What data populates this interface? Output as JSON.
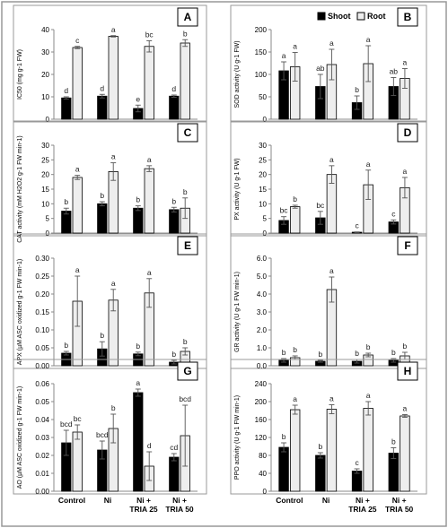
{
  "legend": {
    "shoot": "Shoot",
    "root": "Root",
    "shoot_color": "#000000",
    "root_color": "#eeeeee"
  },
  "categories": [
    "Control",
    "Ni",
    "Ni +|TRIA 25",
    "Ni +|TRIA 50"
  ],
  "chart_data": [
    {
      "type": "bar",
      "panel": "A",
      "ylabel": "IC50 (mg g-1 FW)",
      "ylim": [
        0,
        40
      ],
      "yticks": [
        0,
        10,
        20,
        30,
        40
      ],
      "series": [
        {
          "name": "Shoot",
          "values": [
            9.5,
            10.3,
            4.8,
            10.3
          ],
          "errors": [
            0.5,
            0.8,
            1.5,
            0.5
          ],
          "letters": [
            "d",
            "d",
            "e",
            "d"
          ]
        },
        {
          "name": "Root",
          "values": [
            32,
            37,
            32.5,
            34
          ],
          "errors": [
            0.5,
            0.3,
            2.5,
            1.5
          ],
          "letters": [
            "c",
            "a",
            "bc",
            "b"
          ]
        }
      ]
    },
    {
      "type": "bar",
      "panel": "B",
      "ylabel": "SOD activity (U g-1 FW)",
      "ylim": [
        0,
        200
      ],
      "yticks": [
        0,
        50,
        100,
        150,
        200
      ],
      "series": [
        {
          "name": "Shoot",
          "values": [
            108,
            73,
            37,
            73
          ],
          "errors": [
            20,
            27,
            15,
            20
          ],
          "letters": [
            "a",
            "ab",
            "b",
            "ab"
          ]
        },
        {
          "name": "Root",
          "values": [
            117,
            122,
            124,
            91
          ],
          "errors": [
            32,
            34,
            40,
            22
          ],
          "letters": [
            "a",
            "a",
            "a",
            "a"
          ]
        }
      ]
    },
    {
      "type": "bar",
      "panel": "C",
      "ylabel": "CAT activity (mM H2O2 g-1 FW min-1)",
      "ylim": [
        0,
        30
      ],
      "yticks": [
        0,
        5,
        10,
        15,
        20,
        25,
        30
      ],
      "series": [
        {
          "name": "Shoot",
          "values": [
            7.5,
            10,
            8.5,
            8
          ],
          "errors": [
            1,
            0.7,
            0.8,
            0.8
          ],
          "letters": [
            "b",
            "b",
            "b",
            "b"
          ]
        },
        {
          "name": "Root",
          "values": [
            19,
            21,
            22,
            8.5
          ],
          "errors": [
            0.7,
            3,
            1,
            3.5
          ],
          "letters": [
            "a",
            "a",
            "a",
            "b"
          ]
        }
      ]
    },
    {
      "type": "bar",
      "panel": "D",
      "ylabel": "PX activity (U g-1 FW)",
      "ylim": [
        0,
        30
      ],
      "yticks": [
        0,
        5,
        10,
        15,
        20,
        25,
        30
      ],
      "series": [
        {
          "name": "Shoot",
          "values": [
            4.3,
            5.2,
            0.3,
            3.8
          ],
          "errors": [
            1.3,
            2.2,
            0.1,
            0.7
          ],
          "letters": [
            "bc",
            "bc",
            "c",
            "c"
          ]
        },
        {
          "name": "Root",
          "values": [
            9,
            20,
            16.5,
            15.5
          ],
          "errors": [
            0.5,
            3,
            5,
            3.5
          ],
          "letters": [
            "b",
            "a",
            "a",
            "a"
          ]
        }
      ]
    },
    {
      "type": "bar",
      "panel": "E",
      "ylabel": "APX (µM ASC oxidized g-1 FW min-1)",
      "ylim": [
        0,
        0.3
      ],
      "yticks": [
        0,
        0.05,
        0.1,
        0.15,
        0.2,
        0.25,
        0.3
      ],
      "ytick_labels": [
        "0.00",
        "0.05",
        "0.10",
        "0.15",
        "0.20",
        "0.25",
        "0.30"
      ],
      "series": [
        {
          "name": "Shoot",
          "values": [
            0.035,
            0.047,
            0.033,
            0.01
          ],
          "errors": [
            0.005,
            0.02,
            0.005,
            0.005
          ],
          "letters": [
            "b",
            "b",
            "b",
            "b"
          ]
        },
        {
          "name": "Root",
          "values": [
            0.18,
            0.183,
            0.203,
            0.04
          ],
          "errors": [
            0.07,
            0.03,
            0.04,
            0.01
          ],
          "letters": [
            "a",
            "a",
            "a",
            "b"
          ]
        }
      ]
    },
    {
      "type": "bar",
      "panel": "F",
      "ylabel": "GR activity (U g-1 FW min-1)",
      "ylim": [
        0,
        6
      ],
      "yticks": [
        0,
        1,
        2,
        3,
        4,
        5,
        6
      ],
      "ytick_labels": [
        "0.0",
        "1.0",
        "2.0",
        "3.0",
        "4.0",
        "5.0",
        "6.0"
      ],
      "series": [
        {
          "name": "Shoot",
          "values": [
            0.3,
            0.25,
            0.25,
            0.3
          ],
          "errors": [
            0.1,
            0.05,
            0.1,
            0.1
          ],
          "letters": [
            "b",
            "b",
            "b",
            "b"
          ]
        },
        {
          "name": "Root",
          "values": [
            0.45,
            4.25,
            0.6,
            0.55
          ],
          "errors": [
            0.1,
            0.7,
            0.1,
            0.2
          ],
          "letters": [
            "b",
            "a",
            "b",
            "b"
          ]
        }
      ]
    },
    {
      "type": "bar",
      "panel": "G",
      "ylabel": "AO (µM ASC oxidized g-1 FW min-1)",
      "ylim": [
        0,
        0.06
      ],
      "yticks": [
        0,
        0.01,
        0.02,
        0.03,
        0.04,
        0.05,
        0.06
      ],
      "ytick_labels": [
        "0.00",
        "0.01",
        "0.02",
        "0.03",
        "0.04",
        "0.05",
        "0.06"
      ],
      "series": [
        {
          "name": "Shoot",
          "values": [
            0.027,
            0.023,
            0.055,
            0.019
          ],
          "errors": [
            0.007,
            0.005,
            0.002,
            0.002
          ],
          "letters": [
            "bcd",
            "bcd",
            "a",
            "cd"
          ]
        },
        {
          "name": "Root",
          "values": [
            0.033,
            0.035,
            0.014,
            0.031
          ],
          "errors": [
            0.004,
            0.008,
            0.008,
            0.017
          ],
          "letters": [
            "bc",
            "b",
            "d",
            "bcd"
          ]
        }
      ]
    },
    {
      "type": "bar",
      "panel": "H",
      "ylabel": "PPO activity (U g-1 FW min-1)",
      "ylim": [
        0,
        240
      ],
      "yticks": [
        0,
        40,
        80,
        120,
        160,
        200,
        240
      ],
      "series": [
        {
          "name": "Shoot",
          "values": [
            98,
            80,
            45,
            85
          ],
          "errors": [
            10,
            6,
            5,
            12
          ],
          "letters": [
            "b",
            "b",
            "c",
            "b"
          ]
        },
        {
          "name": "Root",
          "values": [
            182,
            183,
            185,
            168
          ],
          "errors": [
            10,
            10,
            15,
            3
          ],
          "letters": [
            "a",
            "a",
            "a",
            "a"
          ]
        }
      ]
    }
  ]
}
